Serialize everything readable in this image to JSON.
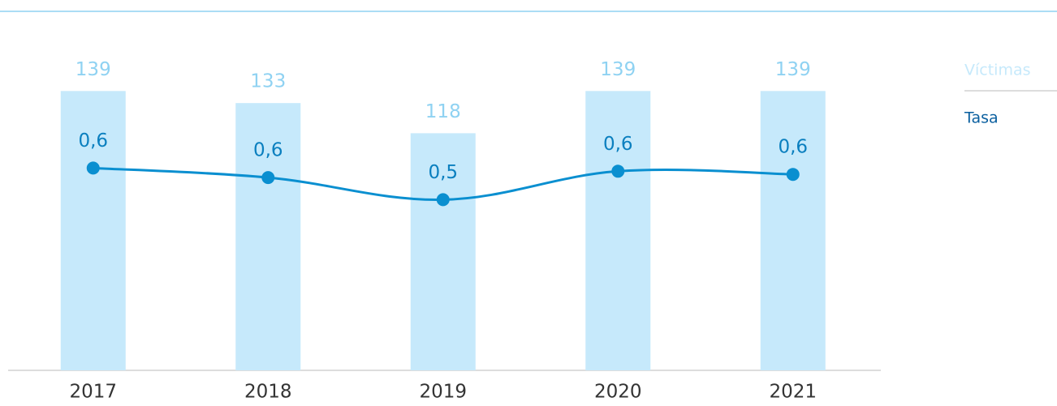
{
  "chart_data": {
    "type": "bar_line",
    "categories": [
      "2017",
      "2018",
      "2019",
      "2020",
      "2021"
    ],
    "series": [
      {
        "name": "Víctimas",
        "type": "bar",
        "color": "#c6e9fb",
        "label_color": "#8fd2f2",
        "values": [
          139,
          133,
          118,
          139,
          139
        ]
      },
      {
        "name": "Tasa",
        "type": "line",
        "axis": "y2",
        "color": "#0a8fd0",
        "label_color": "#0a7fbf",
        "values": [
          0.64,
          0.61,
          0.54,
          0.63,
          0.62
        ],
        "value_labels": [
          "0,6",
          "0,6",
          "0,5",
          "0,6",
          "0,6"
        ]
      }
    ],
    "ylim": [
      0,
      173
    ],
    "y2lim": [
      0,
      1.1
    ]
  }
}
